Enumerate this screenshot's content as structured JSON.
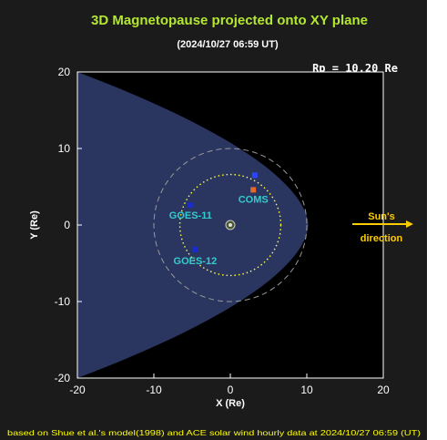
{
  "chart_data": {
    "type": "scatter",
    "title": "3D Magnetopause projected onto XY plane",
    "subtitle": "(2024/10/27 06:59 UT)",
    "rp_label": "Rp = 10.20 Re",
    "xlabel": "X (Re)",
    "ylabel": "Y (Re)",
    "xlim": [
      -20,
      20
    ],
    "ylim": [
      -20,
      20
    ],
    "x_ticks": [
      -20,
      -10,
      0,
      10,
      20
    ],
    "y_ticks": [
      20,
      10,
      0,
      -10,
      -20
    ],
    "x_tick_labels": [
      "-20",
      "-10",
      "0",
      "10",
      "20"
    ],
    "y_tick_labels": [
      "20",
      "10",
      "0",
      "-10",
      "-20"
    ],
    "magnetopause": {
      "subsolar_x": 10.2,
      "y_at_x_minus_20": 20,
      "fill_color": "#2b3660"
    },
    "orbit_circles": [
      {
        "radius": 6.6,
        "style": "dotted",
        "color": "#ffff33"
      },
      {
        "radius": 10,
        "style": "dashed",
        "color": "#9a9a9a"
      }
    ],
    "satellites": [
      {
        "name": "COMS",
        "x": 3.0,
        "y": 4.6,
        "label": "COMS",
        "color": "#ffffff",
        "marker_color": "#e06a2c"
      },
      {
        "name": "GOES-11",
        "x": -5.2,
        "y": 2.6,
        "label": "GOES-11",
        "color": "#33cccc",
        "marker_color": "#1a2bd0"
      },
      {
        "name": "GOES-12",
        "x": -4.6,
        "y": -3.2,
        "label": "GOES-12",
        "color": "#33cccc",
        "marker_color": "#1a2bd0"
      },
      {
        "name": "marker",
        "x": 3.2,
        "y": 6.5,
        "label": "",
        "color": "#33cccc",
        "marker_color": "#2a44ff"
      }
    ],
    "sun_direction": {
      "line1": "Sun's",
      "line2": "direction",
      "color": "#ffcc00"
    },
    "footer": "based on Shue et al.'s model(1998) and ACE solar wind hourly data at 2024/10/27 06:59 (UT)",
    "colors": {
      "background": "#1b1b1b",
      "title": "#b4e830",
      "text": "#ffffff",
      "footer": "#ffff00",
      "plot_background": "#000000"
    }
  }
}
